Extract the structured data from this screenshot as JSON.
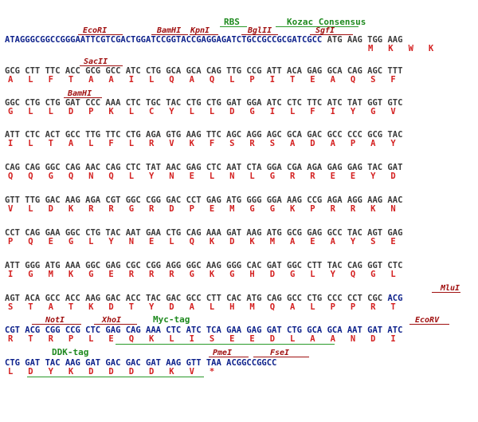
{
  "sequence_map": {
    "top_features": {
      "rbs": "RBS",
      "kozak": "Kozac Consensus"
    },
    "rows": [
      {
        "enzymes": [
          "EcoRI",
          "BamHI",
          "KpnI",
          "BglII",
          "SgfI"
        ],
        "dna_vector": "ATAGGGCGGCCGGGAATTCGTCGACTGGATCCGGTACCGAGGAGATCTGCCGCCGCGATCGCC",
        "dna_insert": " ATG AAG TGG AAG",
        "aa": "M   K   W   K"
      },
      {
        "enzymes": [
          "SacII"
        ],
        "dna": "GCG CTT TTC ACC GCG GCC ATC CTG GCA GCA CAG TTG CCG ATT ACA GAG GCA CAG AGC TTT",
        "aa": "A   L   F   T   A   A   I   L   Q   A   Q   L   P   I   T   E   A   Q   S   F"
      },
      {
        "enzymes": [
          "BamHI"
        ],
        "dna": "GGC CTG CTG GAT CCC AAA CTC TGC TAC CTG CTG GAT GGA ATC CTC TTC ATC TAT GGT GTC",
        "aa": "G   L   L   D   P   K   L   C   Y   L   L   D   G   I   L   F   I   Y   G   V"
      },
      {
        "enzymes": [],
        "dna": "ATT CTC ACT GCC TTG TTC CTG AGA GTG AAG TTC AGC AGG AGC GCA GAC GCC CCC GCG TAC",
        "aa": "I   L   T   A   L   F   L   R   V   K   F   S   R   S   A   D   A   P   A   Y"
      },
      {
        "enzymes": [],
        "dna": "CAG CAG GGC CAG AAC CAG CTC TAT AAC GAG CTC AAT CTA GGA CGA AGA GAG GAG TAC GAT",
        "aa": "Q   Q   G   Q   N   Q   L   Y   N   E   L   N   L   G   R   R   E   E   Y   D"
      },
      {
        "enzymes": [],
        "dna": "GTT TTG GAC AAG AGA CGT GGC CGG GAC CCT GAG ATG GGG GGA AAG CCG AGA AGG AAG AAC",
        "aa": "V   L   D   K   R   R   G   R   D   P   E   M   G   G   K   P   R   R   K   N"
      },
      {
        "enzymes": [],
        "dna": "CCT CAG GAA GGC CTG TAC AAT GAA CTG CAG AAA GAT AAG ATG GCG GAG GCC TAC AGT GAG",
        "aa": "P   Q   E   G   L   Y   N   E   L   Q   K   D   K   M   A   E   A   Y   S   E"
      },
      {
        "enzymes": [],
        "dna": "ATT GGG ATG AAA GGC GAG CGC CGG AGG GGC AAG GGG CAC GAT GGC CTT TAC CAG GGT CTC",
        "aa": "I   G   M   K   G   E   R   R   R   G   K   G   H   D   G   L   Y   Q   G   L"
      },
      {
        "enzymes": [
          "MluI"
        ],
        "dna_insert": "AGT ACA GCC ACC AAG GAC ACC TAC GAC GCC CTT CAC ATG CAG GCC CTG CCC CCT CGC ",
        "dna_vector": "ACG",
        "aa": "S   T   A   T   K   D   T   Y   D   A   L   H   M   Q   A   L   P   P   R   T"
      },
      {
        "enzymes": [
          "NotI",
          "XhoI",
          "EcoRV"
        ],
        "features": [
          "Myc-tag"
        ],
        "dna": "CGT ACG CGG CCG CTC GAG CAG AAA CTC ATC TCA GAA GAG GAT CTG GCA GCA AAT GAT ATC",
        "aa": "R   T   R   P   L   E   Q   K   L   I   S   E   E   D   L   A   A   N   D   I"
      },
      {
        "enzymes": [
          "PmeI",
          "FseI"
        ],
        "features": [
          "DDK-tag"
        ],
        "dna": "CTG GAT TAC AAG GAT GAC GAC GAT AAG GTT TAA ACGGCCGGCC",
        "aa": "L   D   Y   K   D   D   D   D   K   V   *"
      }
    ]
  }
}
